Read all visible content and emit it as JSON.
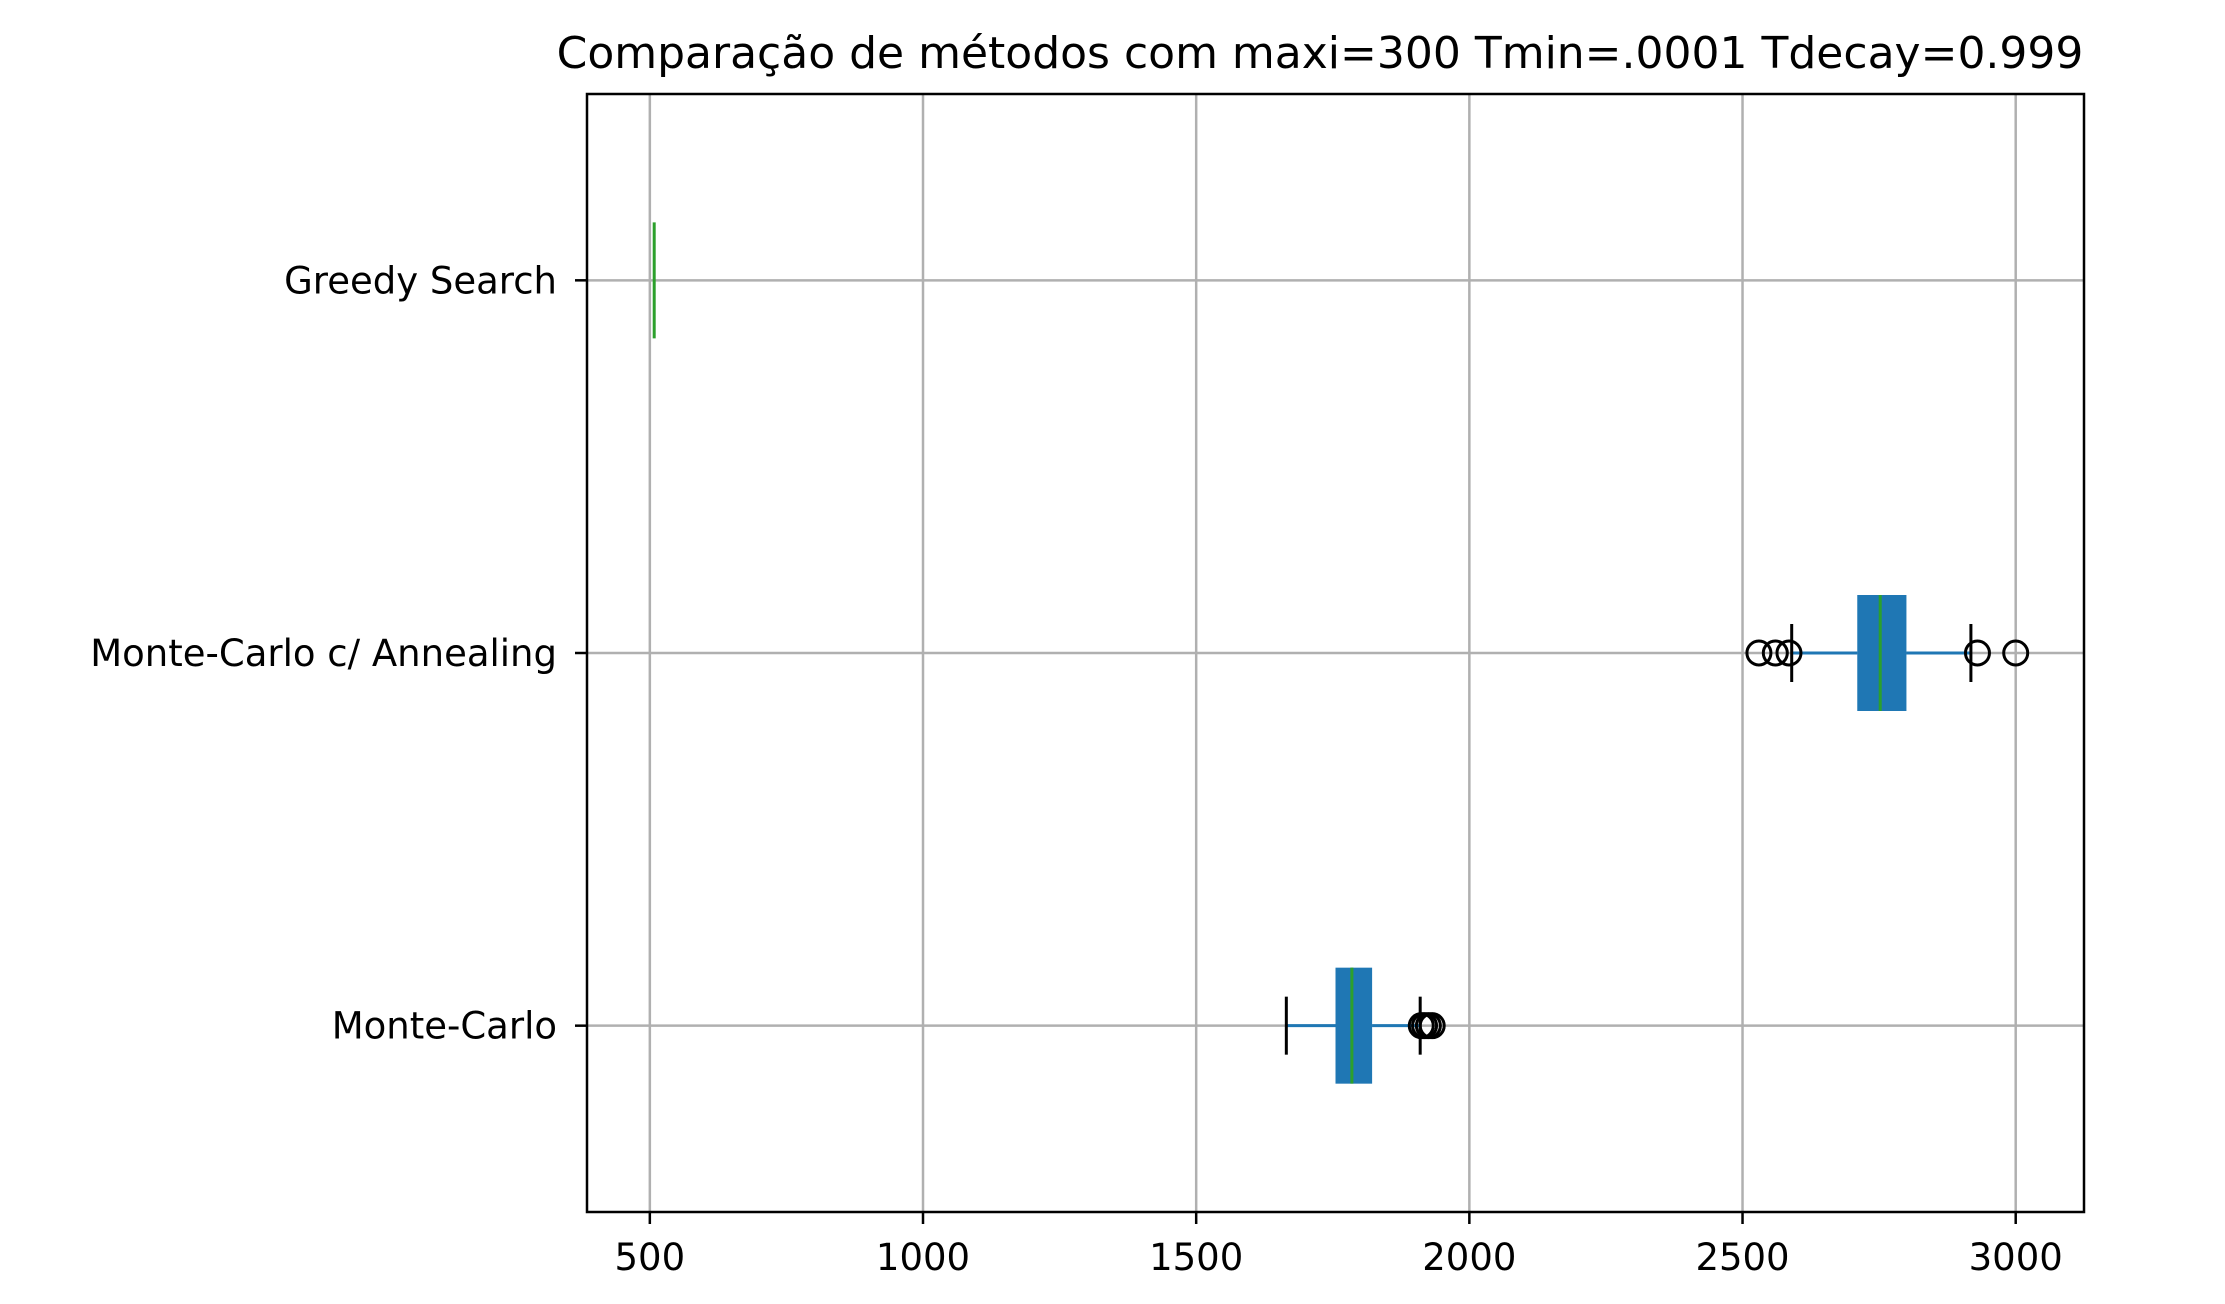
{
  "chart_data": {
    "type": "boxplot",
    "orientation": "horizontal",
    "title": "Comparação de métodos com maxi=300 Tmin=.0001 Tdecay=0.999",
    "xlabel": "",
    "ylabel": "",
    "xlim": [
      385,
      3125
    ],
    "xticks": [
      500,
      1000,
      1500,
      2000,
      2500,
      3000
    ],
    "grid": true,
    "categories": [
      "Monte-Carlo",
      "Monte-Carlo c/ Annealing",
      "Greedy Search"
    ],
    "series": [
      {
        "category": "Monte-Carlo",
        "whisker_low": 1665,
        "q1": 1755,
        "median": 1785,
        "q3": 1822,
        "whisker_high": 1910,
        "outliers": [
          1912,
          1918,
          1925,
          1932
        ]
      },
      {
        "category": "Monte-Carlo c/ Annealing",
        "whisker_low": 2590,
        "q1": 2710,
        "median": 2752,
        "q3": 2800,
        "whisker_high": 2918,
        "outliers": [
          2530,
          2560,
          2585,
          2930,
          3000
        ]
      },
      {
        "category": "Greedy Search",
        "whisker_low": 508,
        "q1": 508,
        "median": 508,
        "q3": 508,
        "whisker_high": 508,
        "outliers": []
      }
    ],
    "colors": {
      "box": "#1f77b4",
      "median": "#2ca02c",
      "whisker": "#000000",
      "grid": "#b0b0b0"
    }
  }
}
